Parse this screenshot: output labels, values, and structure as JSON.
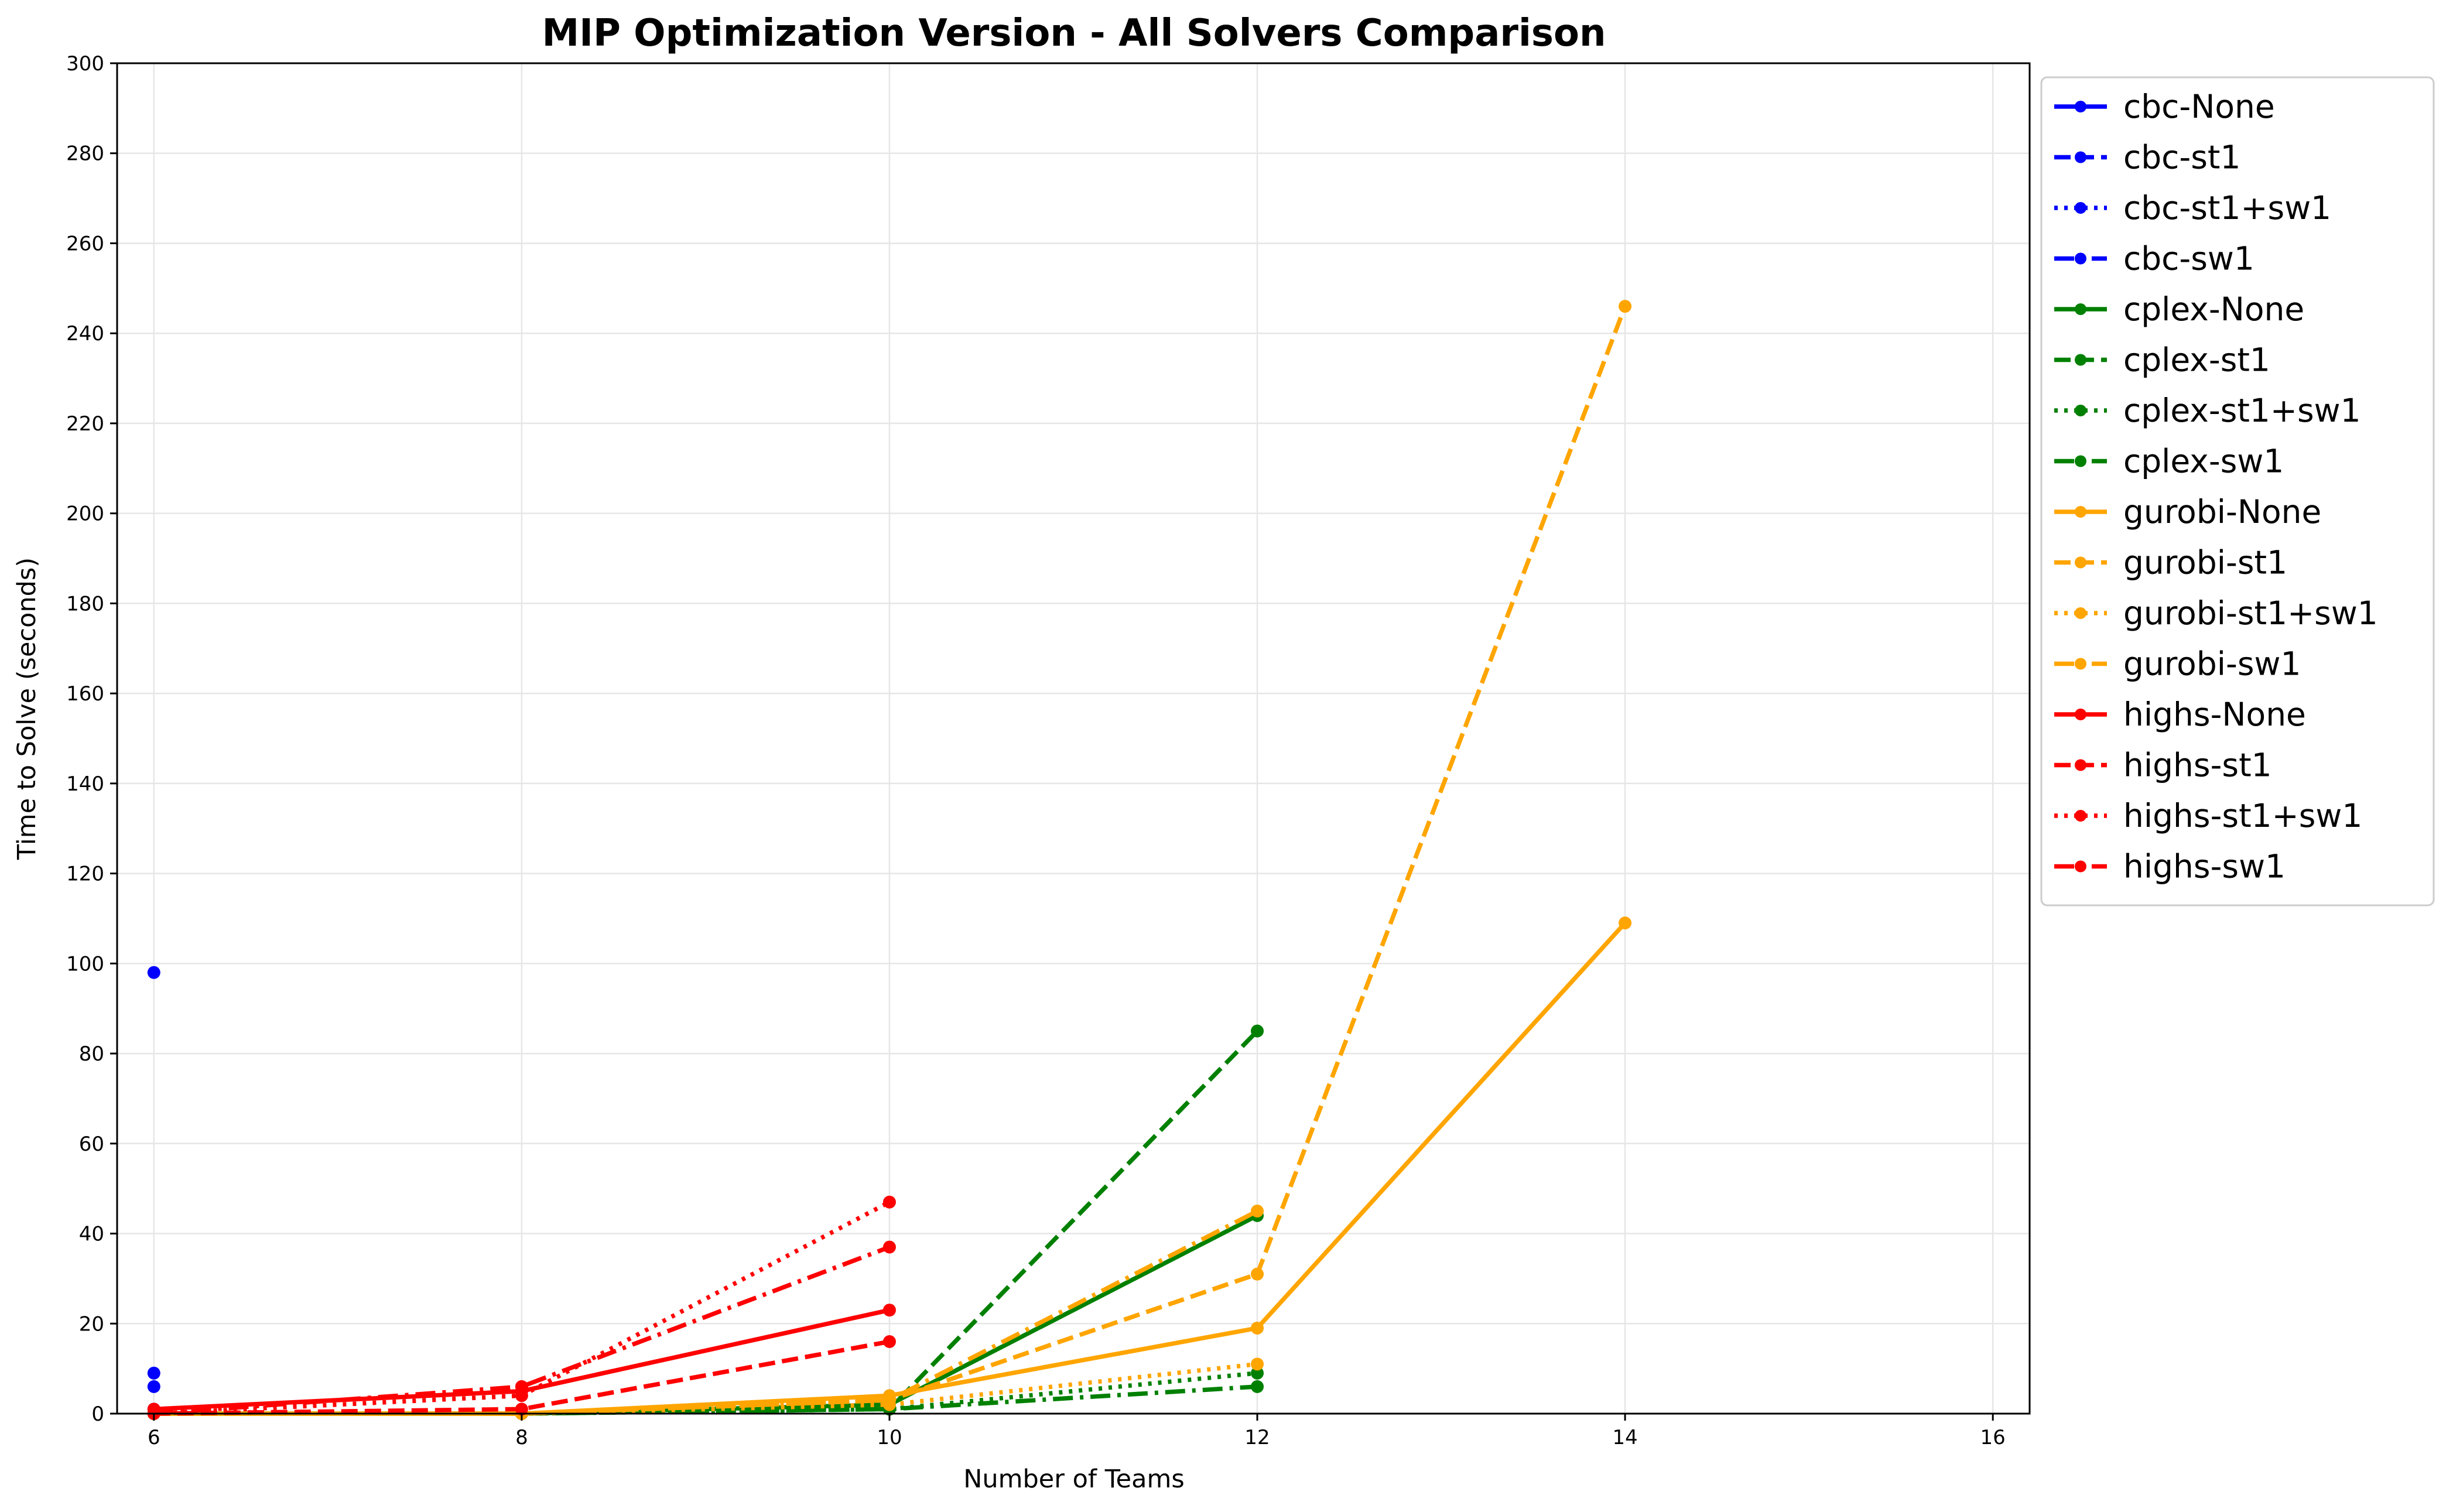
{
  "chart_data": {
    "type": "line",
    "title": "MIP Optimization Version - All Solvers Comparison",
    "xlabel": "Number of Teams",
    "ylabel": "Time to Solve (seconds)",
    "xlim": [
      5.8,
      16.2
    ],
    "ylim": [
      0,
      300
    ],
    "xticks": [
      6,
      8,
      10,
      12,
      14,
      16
    ],
    "yticks": [
      0,
      20,
      40,
      60,
      80,
      100,
      120,
      140,
      160,
      180,
      200,
      220,
      240,
      260,
      280,
      300
    ],
    "grid": true,
    "legend_position": "outside-top-right",
    "series": [
      {
        "name": "cbc-None",
        "color": "#0000ff",
        "dash": "solid",
        "points": [
          [
            6,
            98
          ]
        ]
      },
      {
        "name": "cbc-st1",
        "color": "#0000ff",
        "dash": "dashed",
        "points": [
          [
            6,
            9
          ]
        ]
      },
      {
        "name": "cbc-st1+sw1",
        "color": "#0000ff",
        "dash": "dotted",
        "points": [
          [
            6,
            1
          ]
        ]
      },
      {
        "name": "cbc-sw1",
        "color": "#0000ff",
        "dash": "dashdot",
        "points": [
          [
            6,
            6
          ]
        ]
      },
      {
        "name": "cplex-None",
        "color": "#008000",
        "dash": "solid",
        "points": [
          [
            6,
            0
          ],
          [
            8,
            0
          ],
          [
            10,
            2
          ],
          [
            12,
            44
          ]
        ]
      },
      {
        "name": "cplex-st1",
        "color": "#008000",
        "dash": "dashed",
        "points": [
          [
            6,
            0
          ],
          [
            8,
            0
          ],
          [
            10,
            1
          ],
          [
            12,
            85
          ]
        ]
      },
      {
        "name": "cplex-st1+sw1",
        "color": "#008000",
        "dash": "dotted",
        "points": [
          [
            6,
            0
          ],
          [
            8,
            0
          ],
          [
            10,
            1
          ],
          [
            12,
            9
          ]
        ]
      },
      {
        "name": "cplex-sw1",
        "color": "#008000",
        "dash": "dashdot",
        "points": [
          [
            6,
            0
          ],
          [
            8,
            0
          ],
          [
            10,
            1
          ],
          [
            12,
            6
          ]
        ]
      },
      {
        "name": "gurobi-None",
        "color": "#ffa500",
        "dash": "solid",
        "points": [
          [
            6,
            0
          ],
          [
            8,
            0
          ],
          [
            10,
            4
          ],
          [
            12,
            19
          ],
          [
            14,
            109
          ]
        ]
      },
      {
        "name": "gurobi-st1",
        "color": "#ffa500",
        "dash": "dashed",
        "points": [
          [
            6,
            0
          ],
          [
            8,
            0
          ],
          [
            10,
            3
          ],
          [
            12,
            31
          ],
          [
            14,
            246
          ]
        ]
      },
      {
        "name": "gurobi-st1+sw1",
        "color": "#ffa500",
        "dash": "dotted",
        "points": [
          [
            6,
            0
          ],
          [
            8,
            0
          ],
          [
            10,
            2
          ],
          [
            12,
            11
          ]
        ]
      },
      {
        "name": "gurobi-sw1",
        "color": "#ffa500",
        "dash": "dashdot",
        "points": [
          [
            6,
            0
          ],
          [
            8,
            0
          ],
          [
            10,
            3
          ],
          [
            12,
            45
          ]
        ]
      },
      {
        "name": "highs-None",
        "color": "#ff0000",
        "dash": "solid",
        "points": [
          [
            6,
            1
          ],
          [
            8,
            5
          ],
          [
            10,
            23
          ]
        ]
      },
      {
        "name": "highs-st1",
        "color": "#ff0000",
        "dash": "dashed",
        "points": [
          [
            6,
            0
          ],
          [
            8,
            1
          ],
          [
            10,
            16
          ]
        ]
      },
      {
        "name": "highs-st1+sw1",
        "color": "#ff0000",
        "dash": "dotted",
        "points": [
          [
            6,
            0
          ],
          [
            8,
            4
          ],
          [
            10,
            47
          ]
        ]
      },
      {
        "name": "highs-sw1",
        "color": "#ff0000",
        "dash": "dashdot",
        "points": [
          [
            6,
            0
          ],
          [
            8,
            6
          ],
          [
            10,
            37
          ]
        ]
      }
    ]
  }
}
